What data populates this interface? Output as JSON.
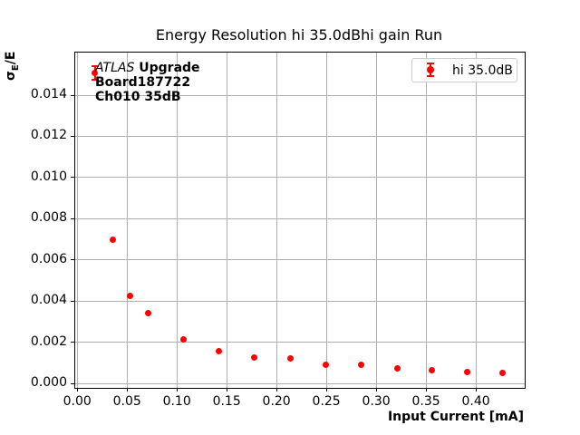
{
  "chart": {
    "title": "Energy Resolution hi 35.0dBhi gain Run",
    "xlabel": "Input Current [mA]",
    "ylabel": {
      "sigma": "σ",
      "sub": "E",
      "rest": "/E"
    }
  },
  "annotation": {
    "line1_italic": "ATLAS",
    "line1_bold": " Upgrade",
    "line2": "Board187722",
    "line3": "Ch010 35dB"
  },
  "legend": {
    "label": "hi 35.0dB"
  },
  "colors": {
    "series": "#ff0000",
    "grid": "#b0b0b0",
    "legend_border": "#cccccc",
    "text": "#000000"
  },
  "chart_data": {
    "type": "scatter",
    "title": "Energy Resolution hi 35.0dBhi gain Run",
    "xlabel": "Input Current [mA]",
    "ylabel": "σE/E",
    "grid": true,
    "legend_position": "upper right",
    "xlim": [
      -0.002,
      0.449
    ],
    "ylim": [
      -0.00022,
      0.01607
    ],
    "xticks": {
      "values": [
        0.0,
        0.05,
        0.1,
        0.15,
        0.2,
        0.25,
        0.3,
        0.35,
        0.4
      ],
      "labels": [
        "0.00",
        "0.05",
        "0.10",
        "0.15",
        "0.20",
        "0.25",
        "0.30",
        "0.35",
        "0.40"
      ]
    },
    "yticks": {
      "values": [
        0.0,
        0.002,
        0.004,
        0.006,
        0.008,
        0.01,
        0.012,
        0.014
      ],
      "labels": [
        "0.000",
        "0.002",
        "0.004",
        "0.006",
        "0.008",
        "0.010",
        "0.012",
        "0.014"
      ]
    },
    "series": [
      {
        "name": "hi 35.0dB",
        "color": "#ff0000",
        "marker": "circle-errorbar",
        "x": [
          0.018,
          0.036,
          0.053,
          0.071,
          0.107,
          0.142,
          0.178,
          0.214,
          0.249,
          0.285,
          0.321,
          0.356,
          0.391,
          0.427
        ],
        "y": [
          0.0151,
          0.007,
          0.00427,
          0.00343,
          0.00213,
          0.00158,
          0.00126,
          0.00119,
          0.0009,
          0.00092,
          0.00072,
          0.00063,
          0.00057,
          0.0005
        ],
        "yerr": [
          0.00033,
          0,
          0,
          0,
          0,
          0,
          0,
          0,
          0,
          0,
          0,
          0,
          0,
          0
        ]
      }
    ]
  }
}
